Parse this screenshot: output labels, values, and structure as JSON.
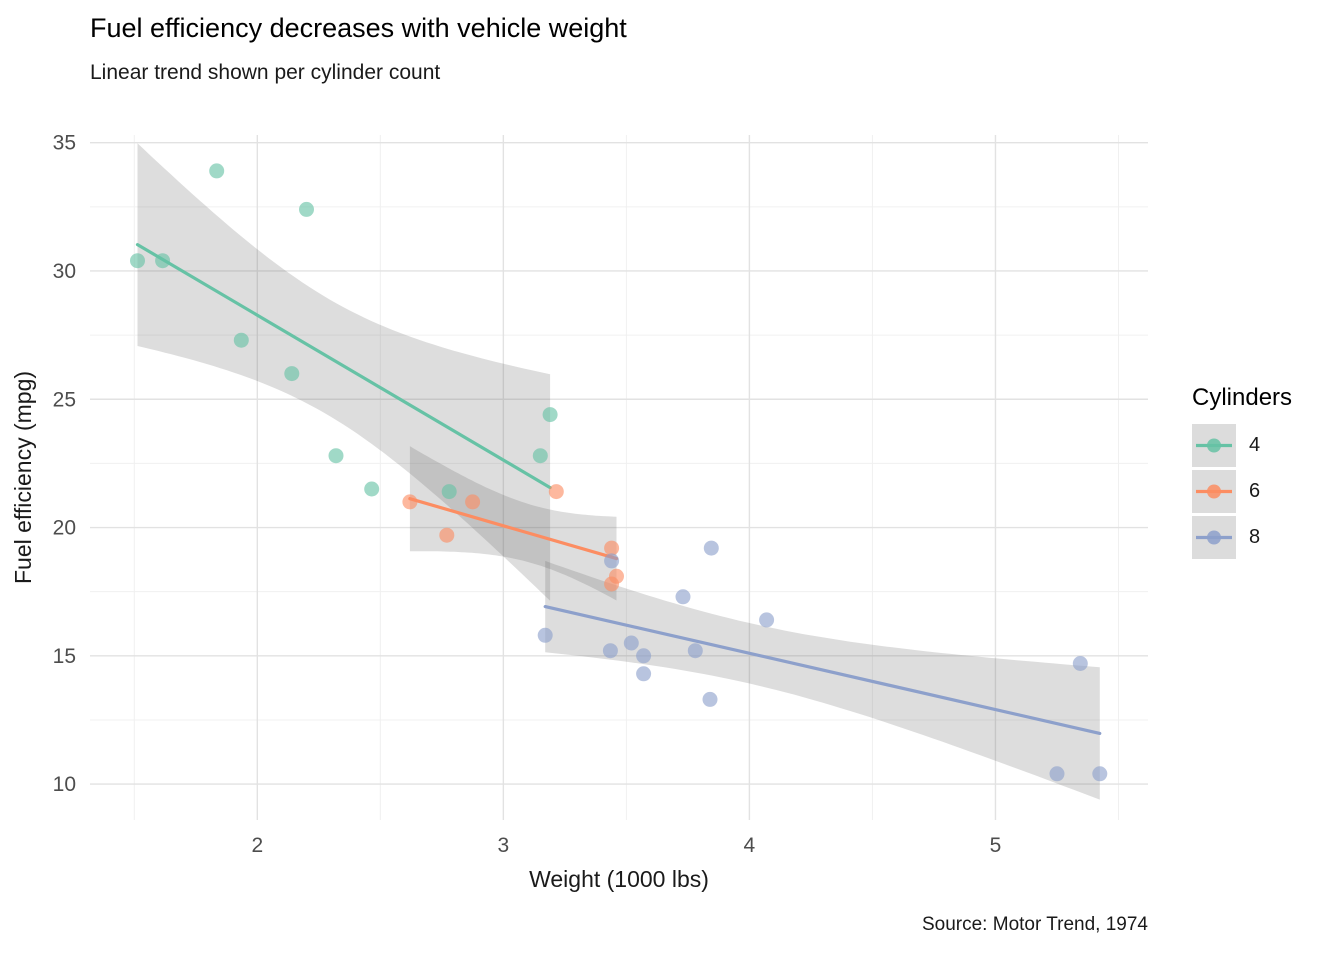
{
  "chart_data": {
    "type": "scatter",
    "title": "Fuel efficiency decreases with vehicle weight",
    "subtitle": "Linear trend shown per cylinder count",
    "caption": "Source: Motor Trend, 1974",
    "xlabel": "Weight (1000 lbs)",
    "ylabel": "Fuel efficiency (mpg)",
    "legend_title": "Cylinders",
    "legend_position": "right",
    "xlim": [
      1.32,
      5.62
    ],
    "ylim": [
      8.6,
      35.3
    ],
    "x_ticks": [
      2,
      3,
      4,
      5
    ],
    "y_ticks": [
      10,
      15,
      20,
      25,
      30,
      35
    ],
    "grid": "major+minor",
    "grid_major_color": "#e2e2e2",
    "grid_minor_color": "#f0f0f0",
    "tick_label_color": "#4d4d4d",
    "trend": {
      "type": "linear",
      "ci": 0.95,
      "band_color": "#666666",
      "band_opacity": 0.22
    },
    "series": [
      {
        "name": "4",
        "color": "#66C2A5",
        "points": [
          [
            2.32,
            22.8
          ],
          [
            3.19,
            24.4
          ],
          [
            3.15,
            22.8
          ],
          [
            2.2,
            32.4
          ],
          [
            1.615,
            30.4
          ],
          [
            1.835,
            33.9
          ],
          [
            2.465,
            21.5
          ],
          [
            1.935,
            27.3
          ],
          [
            2.14,
            26.0
          ],
          [
            1.513,
            30.4
          ],
          [
            2.78,
            21.4
          ]
        ]
      },
      {
        "name": "6",
        "color": "#FC8D62",
        "points": [
          [
            2.62,
            21.0
          ],
          [
            2.875,
            21.0
          ],
          [
            3.215,
            21.4
          ],
          [
            3.46,
            18.1
          ],
          [
            3.44,
            19.2
          ],
          [
            3.44,
            17.8
          ],
          [
            2.77,
            19.7
          ]
        ]
      },
      {
        "name": "8",
        "color": "#8DA0CB",
        "points": [
          [
            3.44,
            18.7
          ],
          [
            3.57,
            14.3
          ],
          [
            4.07,
            16.4
          ],
          [
            3.73,
            17.3
          ],
          [
            3.78,
            15.2
          ],
          [
            5.25,
            10.4
          ],
          [
            5.424,
            10.4
          ],
          [
            5.345,
            14.7
          ],
          [
            3.52,
            15.5
          ],
          [
            3.435,
            15.2
          ],
          [
            3.84,
            13.3
          ],
          [
            3.845,
            19.2
          ],
          [
            3.17,
            15.8
          ],
          [
            3.57,
            15.0
          ]
        ]
      }
    ]
  }
}
